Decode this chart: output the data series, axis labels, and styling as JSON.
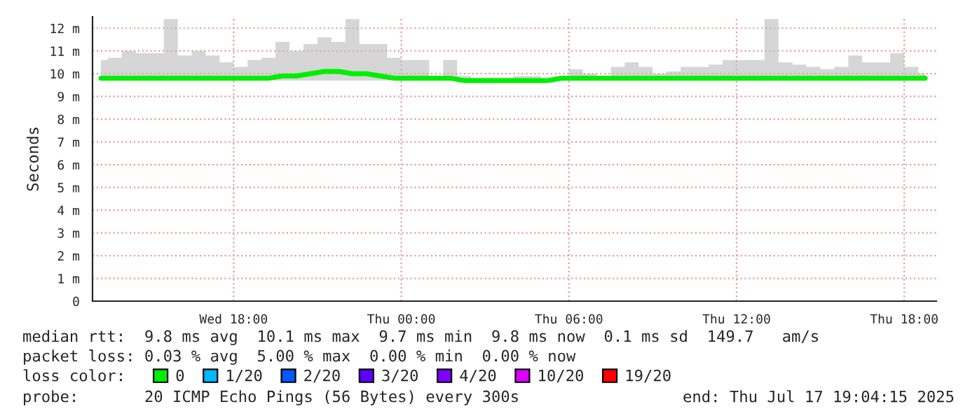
{
  "chart_data": {
    "type": "line",
    "ylabel": "Seconds",
    "x": [
      "2025-07-16T13:15",
      "2025-07-16T13:45",
      "2025-07-16T14:15",
      "2025-07-16T14:45",
      "2025-07-16T15:15",
      "2025-07-16T15:45",
      "2025-07-16T16:15",
      "2025-07-16T16:45",
      "2025-07-16T17:15",
      "2025-07-16T17:45",
      "2025-07-16T18:15",
      "2025-07-16T18:45",
      "2025-07-16T19:15",
      "2025-07-16T19:45",
      "2025-07-16T20:15",
      "2025-07-16T20:45",
      "2025-07-16T21:15",
      "2025-07-16T21:45",
      "2025-07-16T22:15",
      "2025-07-16T22:45",
      "2025-07-16T23:15",
      "2025-07-16T23:45",
      "2025-07-17T00:15",
      "2025-07-17T00:45",
      "2025-07-17T01:15",
      "2025-07-17T01:45",
      "2025-07-17T02:15",
      "2025-07-17T02:45",
      "2025-07-17T03:15",
      "2025-07-17T03:45",
      "2025-07-17T04:15",
      "2025-07-17T04:45",
      "2025-07-17T05:15",
      "2025-07-17T05:45",
      "2025-07-17T06:15",
      "2025-07-17T06:45",
      "2025-07-17T07:15",
      "2025-07-17T07:45",
      "2025-07-17T08:15",
      "2025-07-17T08:45",
      "2025-07-17T09:15",
      "2025-07-17T09:45",
      "2025-07-17T10:15",
      "2025-07-17T10:45",
      "2025-07-17T11:15",
      "2025-07-17T11:45",
      "2025-07-17T12:15",
      "2025-07-17T12:45",
      "2025-07-17T13:15",
      "2025-07-17T13:45",
      "2025-07-17T14:15",
      "2025-07-17T14:45",
      "2025-07-17T15:15",
      "2025-07-17T15:45",
      "2025-07-17T16:15",
      "2025-07-17T16:45",
      "2025-07-17T17:15",
      "2025-07-17T17:45",
      "2025-07-17T18:15",
      "2025-07-17T18:45"
    ],
    "series": [
      {
        "name": "0",
        "color": "#00ee00",
        "values": [
          9.8,
          9.8,
          9.8,
          9.8,
          9.8,
          9.8,
          9.8,
          9.8,
          9.8,
          9.8,
          9.8,
          9.8,
          9.8,
          9.9,
          9.9,
          10.0,
          10.1,
          10.1,
          10.0,
          10.0,
          9.9,
          9.8,
          9.8,
          9.8,
          9.8,
          9.8,
          9.7,
          9.7,
          9.7,
          9.7,
          9.7,
          9.7,
          9.7,
          9.8,
          9.8,
          9.8,
          9.8,
          9.8,
          9.8,
          9.8,
          9.8,
          9.8,
          9.8,
          9.8,
          9.8,
          9.8,
          9.8,
          9.8,
          9.8,
          9.8,
          9.8,
          9.8,
          9.8,
          9.8,
          9.8,
          9.8,
          9.8,
          9.8,
          9.8,
          9.8
        ],
        "lower": [
          9.7,
          9.7,
          9.7,
          9.7,
          9.7,
          9.7,
          9.7,
          9.7,
          9.7,
          9.7,
          9.7,
          9.7,
          9.7,
          9.7,
          9.7,
          9.7,
          9.7,
          9.7,
          9.7,
          9.7,
          9.7,
          9.7,
          9.7,
          9.7,
          9.7,
          9.7,
          9.6,
          9.6,
          9.6,
          9.6,
          9.6,
          9.6,
          9.6,
          9.7,
          9.7,
          9.7,
          9.7,
          9.7,
          9.7,
          9.7,
          9.7,
          9.7,
          9.7,
          9.7,
          9.7,
          9.7,
          9.7,
          9.7,
          9.7,
          9.7,
          9.7,
          9.7,
          9.7,
          9.7,
          9.7,
          9.7,
          9.7,
          9.7,
          9.7,
          9.7
        ],
        "upper": [
          10.6,
          10.7,
          11.0,
          10.9,
          10.9,
          12.4,
          10.8,
          11.0,
          10.8,
          10.5,
          10.3,
          10.6,
          10.7,
          11.4,
          11.0,
          11.3,
          11.6,
          11.4,
          12.4,
          11.3,
          11.3,
          10.7,
          10.6,
          10.6,
          9.9,
          10.6,
          9.9,
          9.8,
          9.8,
          9.8,
          9.9,
          9.9,
          9.8,
          9.9,
          10.2,
          10.0,
          9.9,
          10.3,
          10.5,
          10.3,
          10.0,
          10.1,
          10.3,
          10.3,
          10.4,
          10.6,
          10.6,
          10.6,
          12.4,
          10.5,
          10.4,
          10.3,
          10.2,
          10.3,
          10.8,
          10.5,
          10.5,
          10.9,
          10.3,
          10.0
        ]
      },
      {
        "name": "1/20",
        "color": "#00b8ff",
        "values": [
          null,
          null,
          null,
          null,
          null,
          null,
          null,
          null,
          null,
          null,
          null,
          null,
          null,
          null,
          null,
          null,
          null,
          null,
          null,
          null,
          null,
          null,
          null,
          null,
          null,
          null,
          null,
          null,
          null,
          null,
          null,
          null,
          null,
          null,
          null,
          null,
          null,
          null,
          null,
          null,
          null,
          null,
          null,
          null,
          null,
          null,
          null,
          null,
          null,
          null,
          null,
          null,
          null,
          null,
          null,
          null,
          null,
          null,
          null,
          null
        ]
      },
      {
        "name": "2/20",
        "color": "#0059ff",
        "values": [
          null,
          null,
          null,
          null,
          null,
          null,
          null,
          null,
          null,
          null,
          null,
          null,
          null,
          null,
          null,
          null,
          null,
          null,
          null,
          null,
          null,
          null,
          null,
          null,
          null,
          null,
          null,
          null,
          null,
          null,
          null,
          null,
          null,
          null,
          null,
          null,
          null,
          null,
          null,
          null,
          null,
          null,
          null,
          null,
          null,
          null,
          null,
          null,
          null,
          null,
          null,
          null,
          null,
          null,
          null,
          null,
          null,
          null,
          null,
          null
        ]
      },
      {
        "name": "3/20",
        "color": "#5e00ff",
        "values": [
          null,
          null,
          null,
          null,
          null,
          null,
          null,
          null,
          null,
          null,
          null,
          null,
          null,
          null,
          null,
          null,
          null,
          null,
          null,
          null,
          null,
          null,
          null,
          null,
          null,
          null,
          null,
          null,
          null,
          null,
          null,
          null,
          null,
          null,
          null,
          null,
          null,
          null,
          null,
          null,
          null,
          null,
          null,
          null,
          null,
          null,
          null,
          null,
          null,
          null,
          null,
          null,
          null,
          null,
          null,
          null,
          null,
          null,
          null,
          null
        ]
      },
      {
        "name": "4/20",
        "color": "#7e00ff",
        "values": [
          null,
          null,
          null,
          null,
          null,
          null,
          null,
          null,
          null,
          null,
          null,
          null,
          null,
          null,
          null,
          null,
          null,
          null,
          null,
          null,
          null,
          null,
          null,
          null,
          null,
          null,
          null,
          null,
          null,
          null,
          null,
          null,
          null,
          null,
          null,
          null,
          null,
          null,
          null,
          null,
          null,
          null,
          null,
          null,
          null,
          null,
          null,
          null,
          null,
          null,
          null,
          null,
          null,
          null,
          null,
          null,
          null,
          null,
          null,
          null
        ]
      },
      {
        "name": "10/20",
        "color": "#dd00ff",
        "values": [
          null,
          null,
          null,
          null,
          null,
          null,
          null,
          null,
          null,
          null,
          null,
          null,
          null,
          null,
          null,
          null,
          null,
          null,
          null,
          null,
          null,
          null,
          null,
          null,
          null,
          null,
          null,
          null,
          null,
          null,
          null,
          null,
          null,
          null,
          null,
          null,
          null,
          null,
          null,
          null,
          null,
          null,
          null,
          null,
          null,
          null,
          null,
          null,
          null,
          null,
          null,
          null,
          null,
          null,
          null,
          null,
          null,
          null,
          null,
          null
        ]
      },
      {
        "name": "19/20",
        "color": "#ff0000",
        "values": [
          null,
          null,
          null,
          null,
          null,
          null,
          null,
          null,
          null,
          null,
          null,
          null,
          null,
          null,
          null,
          null,
          null,
          null,
          null,
          null,
          null,
          null,
          null,
          null,
          null,
          null,
          null,
          null,
          null,
          null,
          null,
          null,
          null,
          null,
          null,
          null,
          null,
          null,
          null,
          null,
          null,
          null,
          null,
          null,
          null,
          null,
          null,
          null,
          null,
          null,
          null,
          null,
          null,
          null,
          null,
          null,
          null,
          null,
          null,
          null
        ]
      }
    ],
    "xlim": [
      "2025-07-16T12:57",
      "2025-07-17T19:09"
    ],
    "xticks": [
      {
        "value": "2025-07-16T18:00",
        "label": "Wed 18:00"
      },
      {
        "value": "2025-07-17T00:00",
        "label": "Thu 00:00"
      },
      {
        "value": "2025-07-17T06:00",
        "label": "Thu 06:00"
      },
      {
        "value": "2025-07-17T12:00",
        "label": "Thu 12:00"
      },
      {
        "value": "2025-07-17T18:00",
        "label": "Thu 18:00"
      }
    ],
    "ylim": [
      0,
      12.5
    ],
    "yticks": [
      0,
      {
        "value": 1,
        "label": "1 m"
      },
      {
        "value": 2,
        "label": "2 m"
      },
      {
        "value": 3,
        "label": "3 m"
      },
      {
        "value": 4,
        "label": "4 m"
      },
      {
        "value": 5,
        "label": "5 m"
      },
      {
        "value": 6,
        "label": "6 m"
      },
      {
        "value": 7,
        "label": "7 m"
      },
      {
        "value": 8,
        "label": "8 m"
      },
      {
        "value": 9,
        "label": "9 m"
      },
      {
        "value": 10,
        "label": "10 m"
      },
      {
        "value": 11,
        "label": "11 m"
      },
      {
        "value": 12,
        "label": "12 m"
      }
    ],
    "grid": true,
    "legend": "bottom",
    "marker": "none",
    "line_style": "solid",
    "annotations": [
      "median rtt:  9.8 ms avg  10.1 ms max  9.7 ms min  9.8 ms now  0.1 ms sd  149.7   am/s",
      "packet loss: 0.03 % avg  5.00 % max  0.00 % min  0.00 % now",
      "loss color:",
      "probe:       20 ICMP Echo Pings (56 Bytes) every 300s",
      "end: Thu Jul 17 19:04:15 2025"
    ]
  }
}
